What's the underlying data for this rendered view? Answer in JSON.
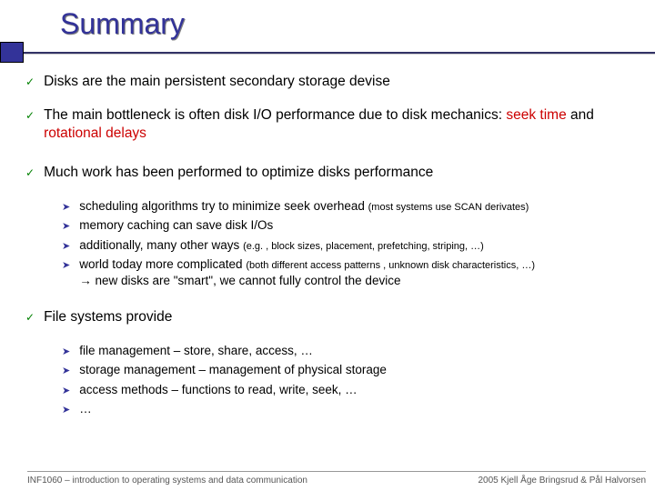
{
  "title": "Summary",
  "colors": {
    "title": "#333399",
    "accent_box": "#333399",
    "check": "#008000",
    "arrow": "#333399",
    "red": "#cc0000",
    "underline_dark": "#333366",
    "underline_light": "#cccccc",
    "text": "#000000",
    "footer": "#555555"
  },
  "items": [
    {
      "text_parts": [
        {
          "t": "Disks are the main persistent secondary storage devise",
          "red": false
        }
      ],
      "subs": []
    },
    {
      "text_parts": [
        {
          "t": "The main bottleneck is often disk I/O performance due to disk mechanics: ",
          "red": false
        },
        {
          "t": "seek time",
          "red": true
        },
        {
          "t": " and ",
          "red": false
        },
        {
          "t": "rotational delays",
          "red": true
        }
      ],
      "subs": []
    },
    {
      "text_parts": [
        {
          "t": "Much work has been performed to optimize disks performance",
          "red": false
        }
      ],
      "subs": [
        {
          "parts": [
            {
              "t": "scheduling algorithms try to minimize seek overhead ",
              "small": false
            },
            {
              "t": "(most systems use SCAN derivates)",
              "small": true
            }
          ]
        },
        {
          "parts": [
            {
              "t": "memory caching can save disk I/Os",
              "small": false
            }
          ]
        },
        {
          "parts": [
            {
              "t": "additionally, many other ways ",
              "small": false
            },
            {
              "t": "(e.g. , block sizes, placement, prefetching, striping, …)",
              "small": true
            }
          ]
        },
        {
          "parts": [
            {
              "t": "world today more complicated ",
              "small": false
            },
            {
              "t": "(both different access patterns , unknown disk characteristics, …)",
              "small": true
            },
            {
              "t": "\n→ new disks are \"smart\", we cannot fully control the device",
              "small": false
            }
          ]
        }
      ]
    },
    {
      "text_parts": [
        {
          "t": "File systems provide",
          "red": false
        }
      ],
      "subs": [
        {
          "parts": [
            {
              "t": "file management – store, share, access, …",
              "small": false
            }
          ]
        },
        {
          "parts": [
            {
              "t": "storage management – management of physical storage",
              "small": false
            }
          ]
        },
        {
          "parts": [
            {
              "t": "access methods – functions to read, write, seek, …",
              "small": false
            }
          ]
        },
        {
          "parts": [
            {
              "t": "…",
              "small": false
            }
          ]
        }
      ]
    }
  ],
  "footer": {
    "left": "INF1060 – introduction to operating systems and data communication",
    "right": "2005  Kjell Åge Bringsrud & Pål Halvorsen"
  }
}
